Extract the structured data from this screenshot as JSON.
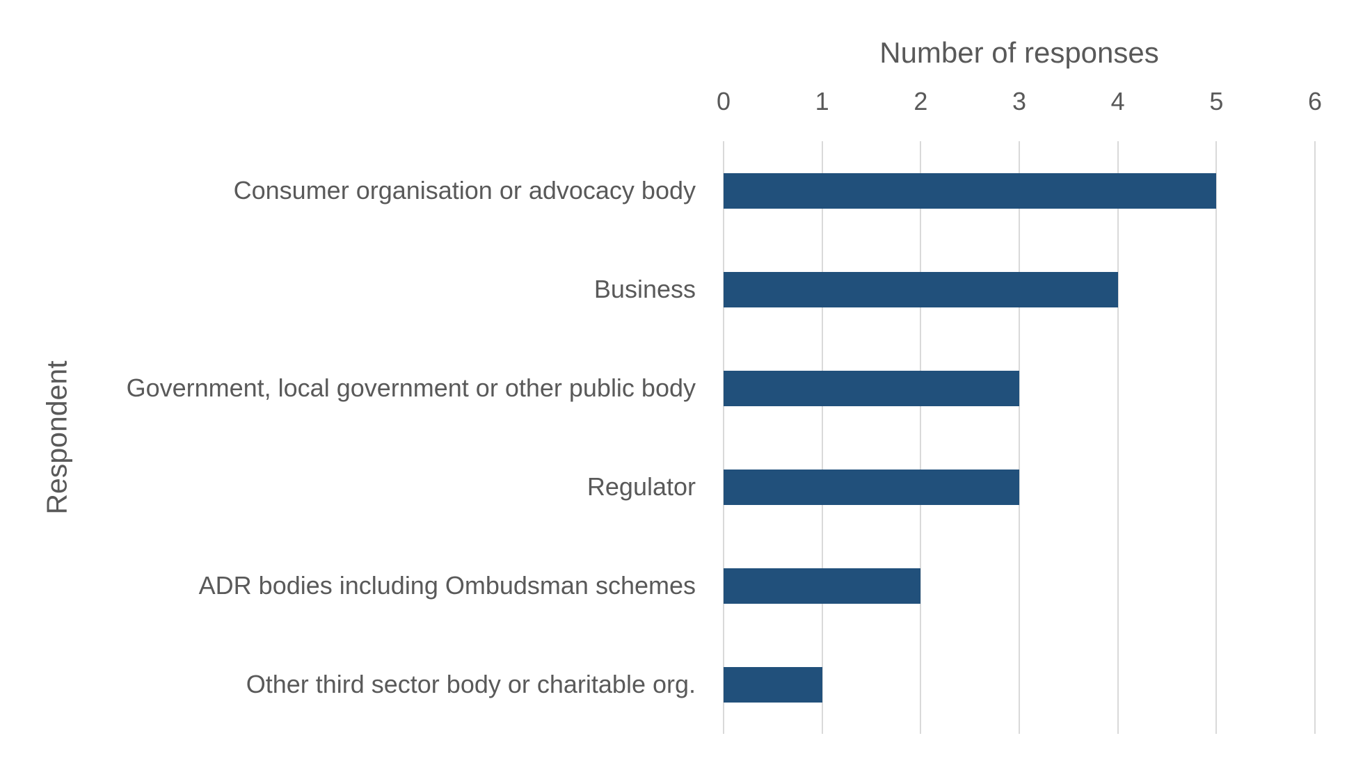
{
  "chart": {
    "background_color": "#FFFFFF"
  },
  "chart_data": {
    "type": "bar",
    "orientation": "horizontal",
    "title": "Number of responses",
    "xlabel": "Number of responses",
    "ylabel": "Respondent",
    "categories": [
      "Consumer organisation or advocacy body",
      "Business",
      "Government, local government or other public body",
      "Regulator",
      "ADR bodies including Ombudsman schemes",
      "Other third sector body or charitable org."
    ],
    "values": [
      5,
      4,
      3,
      3,
      2,
      1
    ],
    "xlim": [
      0,
      6
    ],
    "xticks": [
      0,
      1,
      2,
      3,
      4,
      5,
      6
    ],
    "grid": true,
    "legend": "none",
    "bar_color": "#21507B",
    "text_color": "#595959",
    "gridline_color": "#D9D9D9"
  }
}
